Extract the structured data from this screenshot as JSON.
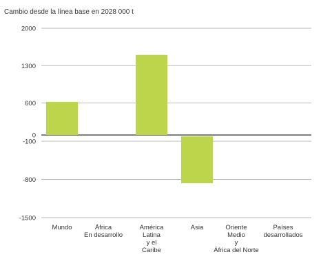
{
  "chart_data": {
    "type": "bar",
    "title": "Cambio desde la línea base en 2028 000 t",
    "xlabel": "",
    "ylabel": "",
    "categories": [
      [
        "Mundo"
      ],
      [
        "África",
        "En desarrollo"
      ],
      [
        "América",
        "Latina",
        "y el",
        "Caribe"
      ],
      [
        "Asia"
      ],
      [
        "Oriente",
        "Medio",
        "y",
        "África del Norte"
      ],
      [
        "Países",
        "desarrollados"
      ]
    ],
    "values": [
      620,
      0,
      1500,
      -870,
      0,
      0
    ],
    "y_ticks": [
      2000,
      1300,
      600,
      0,
      -100,
      -800,
      -1500
    ],
    "y_tick_labels": [
      "2000",
      "1300",
      "600",
      "0",
      "-100",
      "-800",
      "-1500"
    ],
    "ylim": [
      -1500,
      2000
    ],
    "grid": true,
    "colors": {
      "bar": "#bcd54a",
      "grid": "#bbbbbb",
      "axis": "#333333",
      "text": "#333333"
    }
  }
}
